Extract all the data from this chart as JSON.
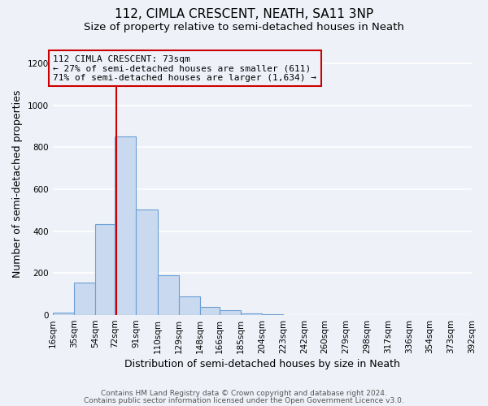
{
  "title": "112, CIMLA CRESCENT, NEATH, SA11 3NP",
  "subtitle": "Size of property relative to semi-detached houses in Neath",
  "xlabel": "Distribution of semi-detached houses by size in Neath",
  "ylabel": "Number of semi-detached properties",
  "bin_edges": [
    16,
    35,
    54,
    72,
    91,
    110,
    129,
    148,
    166,
    185,
    204,
    223,
    242,
    260,
    279,
    298,
    317,
    336,
    354,
    373,
    392
  ],
  "bin_labels": [
    "16sqm",
    "35sqm",
    "54sqm",
    "72sqm",
    "91sqm",
    "110sqm",
    "129sqm",
    "148sqm",
    "166sqm",
    "185sqm",
    "204sqm",
    "223sqm",
    "242sqm",
    "260sqm",
    "279sqm",
    "298sqm",
    "317sqm",
    "336sqm",
    "354sqm",
    "373sqm",
    "392sqm"
  ],
  "counts": [
    10,
    155,
    435,
    850,
    505,
    190,
    88,
    38,
    22,
    8,
    3,
    0,
    0,
    0,
    0,
    0,
    0,
    0,
    0,
    0
  ],
  "bar_color": "#c9d9ef",
  "bar_edge_color": "#6b9fd4",
  "property_value": 73,
  "vline_color": "#cc0000",
  "annotation_title": "112 CIMLA CRESCENT: 73sqm",
  "annotation_line1": "← 27% of semi-detached houses are smaller (611)",
  "annotation_line2": "71% of semi-detached houses are larger (1,634) →",
  "annotation_box_color": "#cc0000",
  "ylim": [
    0,
    1250
  ],
  "yticks": [
    0,
    200,
    400,
    600,
    800,
    1000,
    1200
  ],
  "footer1": "Contains HM Land Registry data © Crown copyright and database right 2024.",
  "footer2": "Contains public sector information licensed under the Open Government Licence v3.0.",
  "background_color": "#eef2f8",
  "grid_color": "#ffffff",
  "title_fontsize": 11,
  "subtitle_fontsize": 9.5,
  "label_fontsize": 9,
  "tick_fontsize": 7.5,
  "annotation_fontsize": 8,
  "footer_fontsize": 6.5
}
